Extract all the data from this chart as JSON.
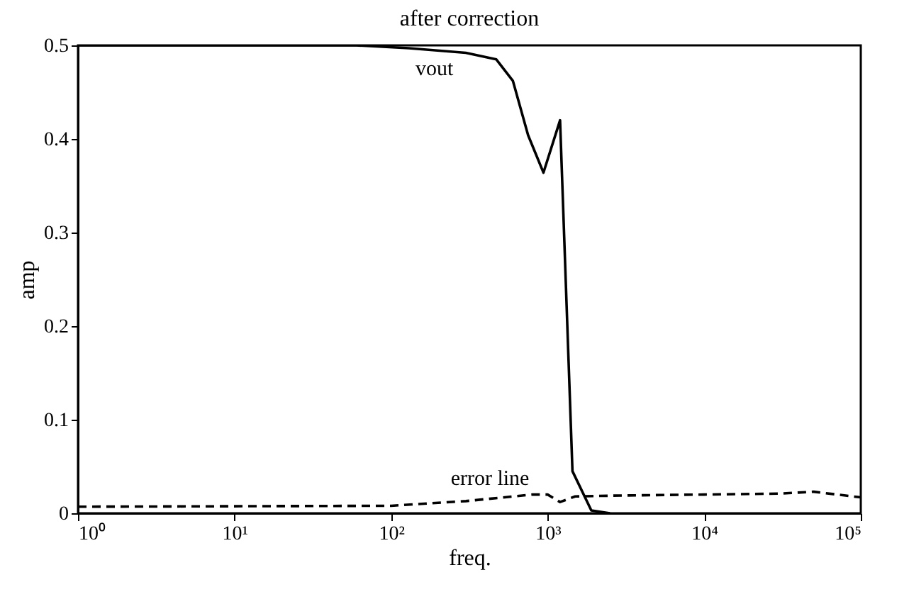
{
  "chart_data": {
    "type": "line",
    "title": "after correction",
    "xlabel": "freq.",
    "ylabel": "amp",
    "log": "x",
    "xlim": [
      1,
      100000
    ],
    "xticks": [
      {
        "value": 1,
        "label": "10⁰"
      },
      {
        "value": 10,
        "label": "10¹"
      },
      {
        "value": 100,
        "label": "10²"
      },
      {
        "value": 1000,
        "label": "10³"
      },
      {
        "value": 10000,
        "label": "10⁴"
      },
      {
        "value": 100000,
        "label": "10⁵"
      }
    ],
    "ylim": [
      0,
      0.5
    ],
    "yticks": [
      0,
      0.1,
      0.2,
      0.3,
      0.4,
      0.5
    ],
    "grid": false,
    "series": [
      {
        "name": "vout",
        "color": "#000000",
        "line_style": "solid",
        "x": [
          1,
          60,
          130,
          300,
          470,
          600,
          750,
          940,
          1200,
          1440,
          1900,
          2500
        ],
        "values": [
          0.5,
          0.5,
          0.497,
          0.492,
          0.485,
          0.462,
          0.404,
          0.364,
          0.42,
          0.045,
          0.003,
          0
        ]
      },
      {
        "name": "error line",
        "color": "#000000",
        "line_style": "dashed",
        "x": [
          1,
          100,
          300,
          800,
          1000,
          1200,
          1500,
          3000,
          10000,
          30000,
          50000,
          100000
        ],
        "values": [
          0.007,
          0.008,
          0.013,
          0.02,
          0.02,
          0.012,
          0.018,
          0.019,
          0.02,
          0.021,
          0.023,
          0.017
        ]
      }
    ]
  }
}
